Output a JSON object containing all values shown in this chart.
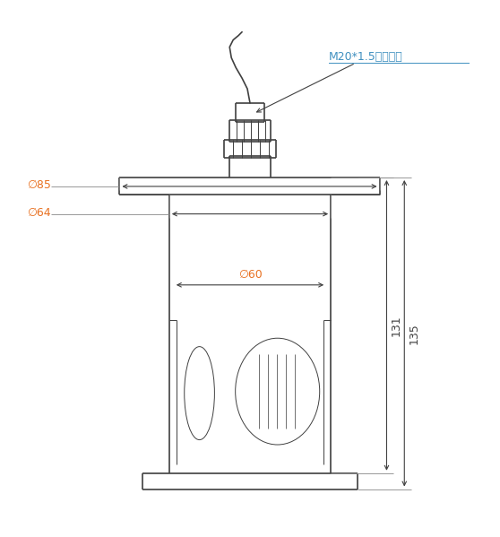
{
  "bg_color": "#ffffff",
  "line_color": "#404040",
  "dim_color_orange": "#e87020",
  "dim_color_black": "#404040",
  "annotation_color": "#4090c0",
  "label_m20": "M20*1.5出线接头",
  "label_d85": "∅85",
  "label_d64": "∅64",
  "label_d60": "∅60",
  "label_131": "131",
  "label_135": "135",
  "figsize": [
    5.58,
    5.99
  ],
  "dpi": 100
}
